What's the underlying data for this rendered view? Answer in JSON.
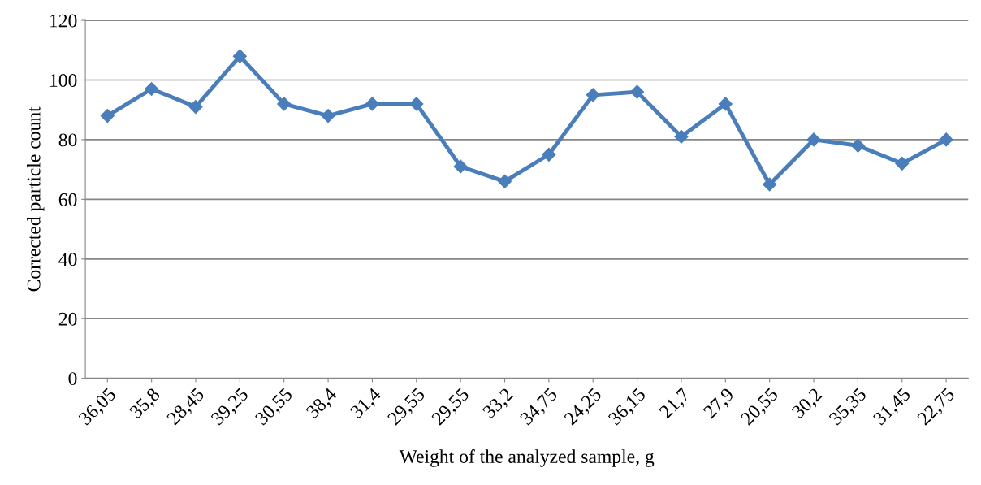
{
  "chart_data": {
    "type": "line",
    "xlabel": "Weight of the analyzed sample, g",
    "ylabel": "Corrected particle count",
    "categories": [
      "36,05",
      "35,8",
      "28,45",
      "39,25",
      "30,55",
      "38,4",
      "31,4",
      "29,55",
      "29,55",
      "33,2",
      "34,75",
      "24,25",
      "36,15",
      "21,7",
      "27,9",
      "20,55",
      "30,2",
      "35,35",
      "31,45",
      "22,75"
    ],
    "series": [
      {
        "color": "#4a7ebb",
        "values": [
          88,
          97,
          91,
          108,
          92,
          88,
          92,
          92,
          71,
          66,
          75,
          95,
          96,
          81,
          92,
          65,
          80,
          78,
          72,
          80
        ]
      }
    ],
    "ylim": [
      0,
      120
    ],
    "yticks": [
      0,
      20,
      40,
      60,
      80,
      100,
      120
    ],
    "grid": "y",
    "marker": "diamond",
    "line_style": "solid",
    "legend": false
  }
}
